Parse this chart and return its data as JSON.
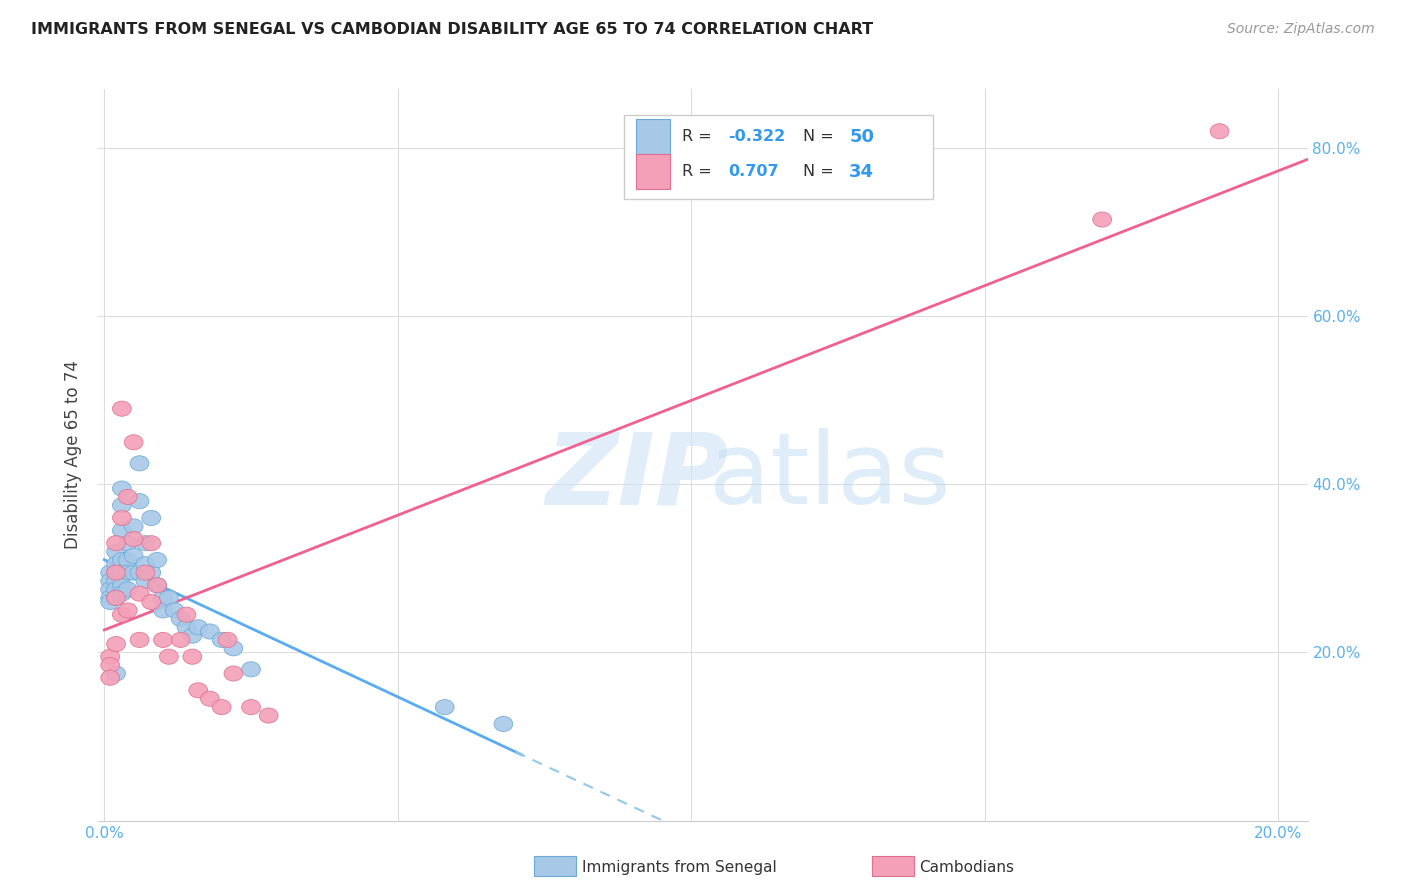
{
  "title": "IMMIGRANTS FROM SENEGAL VS CAMBODIAN DISABILITY AGE 65 TO 74 CORRELATION CHART",
  "source": "Source: ZipAtlas.com",
  "ylabel": "Disability Age 65 to 74",
  "xlim": [
    -0.001,
    0.205
  ],
  "ylim": [
    0.0,
    0.87
  ],
  "color_blue": "#a8c8e8",
  "color_blue_edge": "#6aaad4",
  "color_pink": "#f4a0b8",
  "color_pink_edge": "#e07090",
  "line_blue_solid": "#5aacf0",
  "line_blue_dash": "#90c8f0",
  "line_pink": "#f06090",
  "senegal_x": [
    0.001,
    0.001,
    0.001,
    0.001,
    0.001,
    0.002,
    0.002,
    0.002,
    0.002,
    0.002,
    0.002,
    0.002,
    0.003,
    0.003,
    0.003,
    0.003,
    0.003,
    0.003,
    0.003,
    0.004,
    0.004,
    0.004,
    0.004,
    0.005,
    0.005,
    0.005,
    0.006,
    0.006,
    0.006,
    0.007,
    0.007,
    0.007,
    0.008,
    0.008,
    0.009,
    0.009,
    0.01,
    0.01,
    0.011,
    0.012,
    0.013,
    0.014,
    0.015,
    0.016,
    0.018,
    0.02,
    0.022,
    0.025,
    0.058,
    0.068
  ],
  "senegal_y": [
    0.295,
    0.285,
    0.275,
    0.265,
    0.26,
    0.32,
    0.305,
    0.295,
    0.285,
    0.275,
    0.265,
    0.175,
    0.395,
    0.375,
    0.345,
    0.31,
    0.295,
    0.28,
    0.27,
    0.33,
    0.31,
    0.295,
    0.275,
    0.35,
    0.315,
    0.295,
    0.425,
    0.38,
    0.295,
    0.33,
    0.305,
    0.285,
    0.36,
    0.295,
    0.31,
    0.28,
    0.265,
    0.25,
    0.265,
    0.25,
    0.24,
    0.23,
    0.22,
    0.23,
    0.225,
    0.215,
    0.205,
    0.18,
    0.135,
    0.115
  ],
  "cambodian_x": [
    0.001,
    0.001,
    0.001,
    0.002,
    0.002,
    0.002,
    0.002,
    0.003,
    0.003,
    0.003,
    0.004,
    0.004,
    0.005,
    0.005,
    0.006,
    0.006,
    0.007,
    0.008,
    0.008,
    0.009,
    0.01,
    0.011,
    0.013,
    0.014,
    0.015,
    0.016,
    0.018,
    0.02,
    0.021,
    0.022,
    0.025,
    0.028,
    0.17,
    0.19
  ],
  "cambodian_y": [
    0.195,
    0.185,
    0.17,
    0.33,
    0.295,
    0.265,
    0.21,
    0.49,
    0.36,
    0.245,
    0.385,
    0.25,
    0.45,
    0.335,
    0.27,
    0.215,
    0.295,
    0.33,
    0.26,
    0.28,
    0.215,
    0.195,
    0.215,
    0.245,
    0.195,
    0.155,
    0.145,
    0.135,
    0.215,
    0.175,
    0.135,
    0.125,
    0.715,
    0.82
  ]
}
